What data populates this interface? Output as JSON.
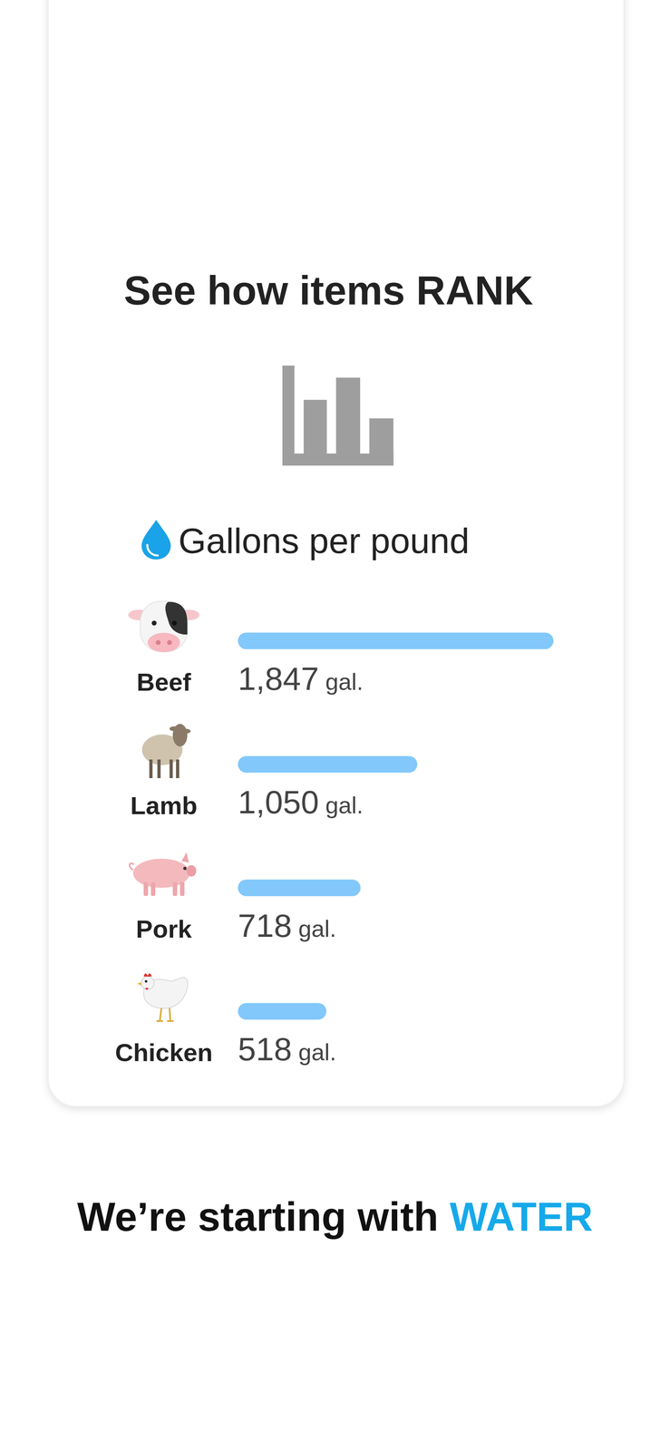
{
  "header": {
    "title": "See how items RANK"
  },
  "chart_data": {
    "type": "bar",
    "title": "Gallons per pound",
    "categories": [
      "Beef",
      "Lamb",
      "Pork",
      "Chicken"
    ],
    "values": [
      1847,
      1050,
      718,
      518
    ],
    "value_labels": [
      "1,847",
      "1,050",
      "718",
      "518"
    ],
    "unit_label": "gal.",
    "xlim": [
      0,
      1847
    ],
    "orientation": "horizontal",
    "data_labels": true,
    "tick_labels": false,
    "color": "#82c8fb"
  },
  "footer": {
    "text": "We’re starting with",
    "highlight": "WATER"
  }
}
